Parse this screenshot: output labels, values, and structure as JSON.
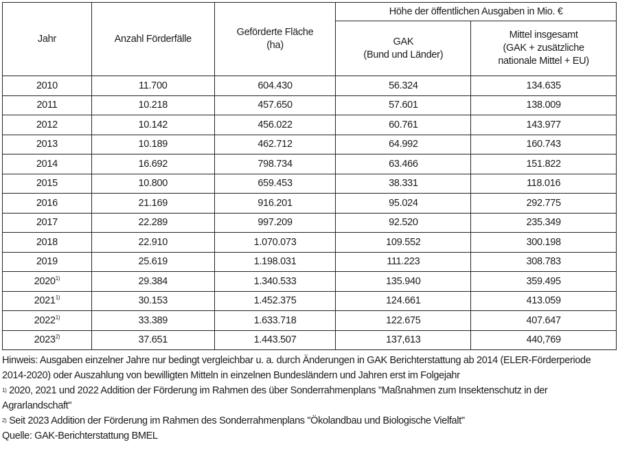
{
  "table": {
    "headers": {
      "jahr": "Jahr",
      "anzahl": "Anzahl Förderfälle",
      "flaeche_line1": "Geförderte Fläche",
      "flaeche_line2": "(ha)",
      "ausgaben_group": "Höhe der öffentlichen Ausgaben in Mio. €",
      "gak_line1": "GAK",
      "gak_line2": "(Bund und Länder)",
      "mittel_line1": "Mittel insgesamt",
      "mittel_line2": "(GAK + zusätzliche",
      "mittel_line3": "nationale Mittel + EU)"
    },
    "rows": [
      {
        "jahr": "2010",
        "fn": "",
        "anzahl": "11.700",
        "flaeche": "604.430",
        "gak": "56.324",
        "mittel": "134.635"
      },
      {
        "jahr": "2011",
        "fn": "",
        "anzahl": "10.218",
        "flaeche": "457.650",
        "gak": "57.601",
        "mittel": "138.009"
      },
      {
        "jahr": "2012",
        "fn": "",
        "anzahl": "10.142",
        "flaeche": "456.022",
        "gak": "60.761",
        "mittel": "143.977"
      },
      {
        "jahr": "2013",
        "fn": "",
        "anzahl": "10.189",
        "flaeche": "462.712",
        "gak": "64.992",
        "mittel": "160.743"
      },
      {
        "jahr": "2014",
        "fn": "",
        "anzahl": "16.692",
        "flaeche": "798.734",
        "gak": "63.466",
        "mittel": "151.822"
      },
      {
        "jahr": "2015",
        "fn": "",
        "anzahl": "10.800",
        "flaeche": "659.453",
        "gak": "38.331",
        "mittel": "118.016"
      },
      {
        "jahr": "2016",
        "fn": "",
        "anzahl": "21.169",
        "flaeche": "916.201",
        "gak": "95.024",
        "mittel": "292.775"
      },
      {
        "jahr": "2017",
        "fn": "",
        "anzahl": "22.289",
        "flaeche": "997.209",
        "gak": "92.520",
        "mittel": "235.349"
      },
      {
        "jahr": "2018",
        "fn": "",
        "anzahl": "22.910",
        "flaeche": "1.070.073",
        "gak": "109.552",
        "mittel": "300.198"
      },
      {
        "jahr": "2019",
        "fn": "",
        "anzahl": "25.619",
        "flaeche": "1.198.031",
        "gak": "111.223",
        "mittel": "308.783"
      },
      {
        "jahr": "2020",
        "fn": "1)",
        "anzahl": "29.384",
        "flaeche": "1.340.533",
        "gak": "135.940",
        "mittel": "359.495"
      },
      {
        "jahr": "2021",
        "fn": "1)",
        "anzahl": "30.153",
        "flaeche": "1.452.375",
        "gak": "124.661",
        "mittel": "413.059"
      },
      {
        "jahr": "2022",
        "fn": "1)",
        "anzahl": "33.389",
        "flaeche": "1.633.718",
        "gak": "122.675",
        "mittel": "407.647"
      },
      {
        "jahr": "2023",
        "fn": "2)",
        "anzahl": "37.651",
        "flaeche": "1.443.507",
        "gak": "137,613",
        "mittel": "440,769"
      }
    ]
  },
  "notes": {
    "hinweis": "Hinweis: Ausgaben einzelner Jahre nur bedingt vergleichbar u. a. durch Änderungen in GAK Berichterstattung ab 2014 (ELER-Förderperiode 2014-2020) oder Auszahlung von bewilligten Mitteln in einzelnen Bundesländern und Jahren erst im Folgejahr",
    "fn1_mark": "1)",
    "fn1": " 2020, 2021 und 2022 Addition der Förderung im Rahmen des über Sonderrahmenplans \"Maßnahmen zum Insektenschutz in der Agrarlandschaft\"",
    "fn2_mark": "2)",
    "fn2": " Seit 2023 Addition der Förderung im Rahmen des Sonderrahmenplans \"Ökolandbau und Biologische Vielfalt\"",
    "quelle": "Quelle: GAK-Berichterstattung BMEL"
  }
}
